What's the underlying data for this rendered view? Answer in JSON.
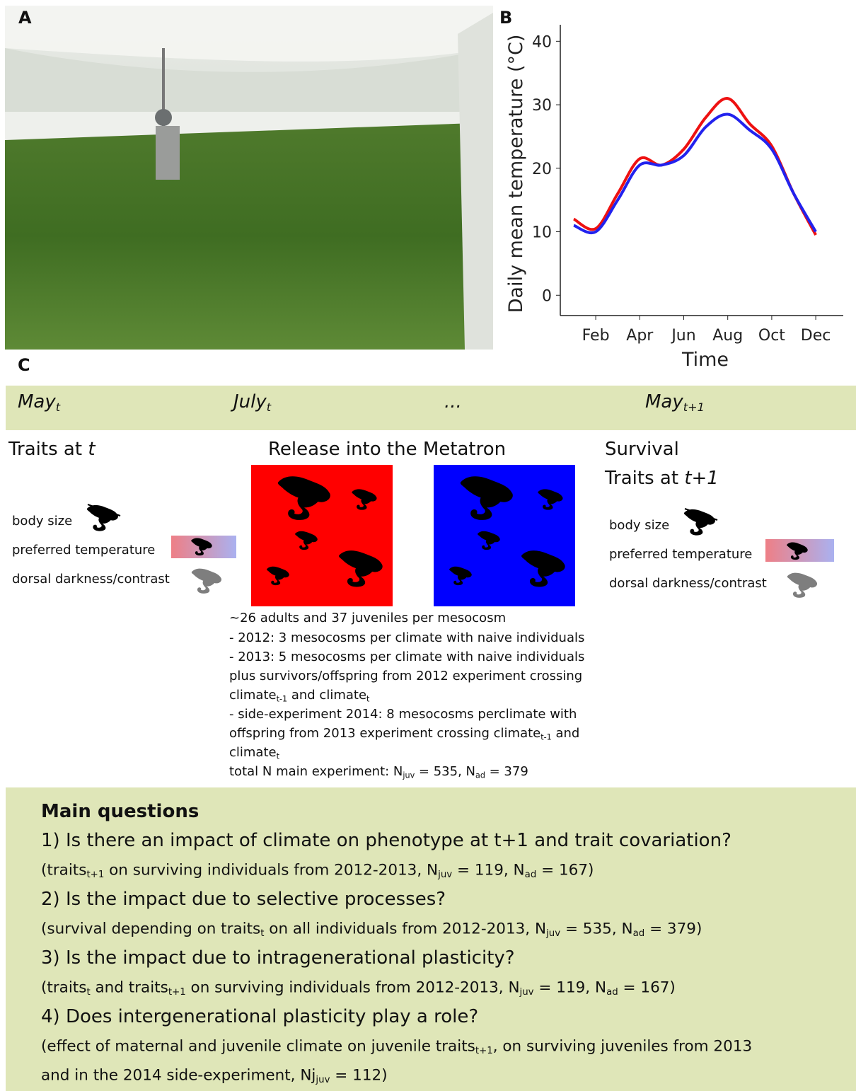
{
  "panel_labels": [
    "A",
    "B",
    "C"
  ],
  "chart_data": {
    "type": "line",
    "x_label": "Time",
    "y_label": "Daily mean temperature (°C)",
    "categories": [
      null,
      "Feb",
      null,
      "Apr",
      null,
      "Jun",
      null,
      "Aug",
      null,
      "Oct",
      null,
      "Dec"
    ],
    "series": [
      {
        "color": "#ee1111",
        "values": [
          12,
          10.5,
          16,
          21.5,
          20.5,
          23,
          28,
          31,
          27,
          23.5,
          16,
          9.5
        ]
      },
      {
        "color": "#2222ee",
        "values": [
          11,
          10,
          15,
          20.5,
          20.5,
          22,
          26.5,
          28.5,
          26,
          23,
          16,
          10
        ]
      }
    ],
    "ylim": [
      -3.2,
      42.6
    ],
    "yticks": [
      0,
      10,
      20,
      30,
      40
    ]
  },
  "panel_c": {
    "timeline": [
      [
        "May",
        {
          "sub": "t"
        }
      ],
      [
        "July",
        {
          "sub": "t"
        }
      ],
      [
        "..."
      ],
      [
        "May",
        {
          "sub": "t+1"
        }
      ]
    ],
    "heading_left": [
      "Traits at ",
      {
        "it": "t"
      }
    ],
    "heading_middle": [
      "Release into the Metatron"
    ],
    "heading_right": [
      [
        "Survival"
      ],
      [
        "Traits at ",
        {
          "it": "t+1"
        }
      ]
    ],
    "traits": [
      "body size",
      "preferred temperature",
      "dorsal darkness/contrast"
    ],
    "methods": [
      [
        "~26 adults and 37 juveniles per mesocosm"
      ],
      [
        "- 2012: 3 mesocosms per climate with naive individuals"
      ],
      [
        "- 2013: 5 mesocosms per climate with naive individuals"
      ],
      [
        "plus survivors/offspring from 2012 experiment crossing"
      ],
      [
        "climate",
        {
          "sub": "t-1"
        },
        " and climate",
        {
          "sub": "t"
        }
      ],
      [
        "- side-experiment 2014: 8 mesocosms perclimate with"
      ],
      [
        "offspring from 2013 experiment crossing climate",
        {
          "sub": "t-1"
        },
        " and"
      ],
      [
        "climate",
        {
          "sub": "t"
        }
      ],
      [
        "total N main experiment: N",
        {
          "sub": "juv"
        },
        " = 535, N",
        {
          "sub": "ad"
        },
        " = 379"
      ]
    ],
    "questions_title": "Main questions",
    "questions": [
      {
        "question": "1) Is there an impact of climate on phenotype at t+1 and trait covariation?",
        "notes": [
          [
            "(traits",
            {
              "sub": "t+1"
            },
            " on surviving individuals from 2012-2013, N",
            {
              "sub": "juv"
            },
            " = 119, N",
            {
              "sub": "ad"
            },
            " = 167)"
          ]
        ]
      },
      {
        "question": "2) Is the impact due to selective processes?",
        "notes": [
          [
            "(survival depending on traits",
            {
              "sub": "t"
            },
            " on all individuals from 2012-2013, N",
            {
              "sub": "juv"
            },
            " = 535, N",
            {
              "sub": "ad"
            },
            " = 379)"
          ]
        ]
      },
      {
        "question": "3) Is the impact due to intragenerational plasticity?",
        "notes": [
          [
            "(traits",
            {
              "sub": "t"
            },
            " and traits",
            {
              "sub": "t+1"
            },
            " on surviving individuals from 2012-2013, N",
            {
              "sub": "juv"
            },
            " = 119, N",
            {
              "sub": "ad"
            },
            " = 167)"
          ]
        ]
      },
      {
        "question": "4) Does intergenerational plasticity play a role?",
        "notes": [
          [
            "(effect of maternal and juvenile climate on juvenile traits",
            {
              "sub": "t+1"
            },
            ", on surviving juveniles from 2013"
          ],
          [
            "and in the 2014 side-experiment, Nj",
            {
              "sub": "juv"
            },
            " = 112)"
          ]
        ]
      }
    ]
  }
}
